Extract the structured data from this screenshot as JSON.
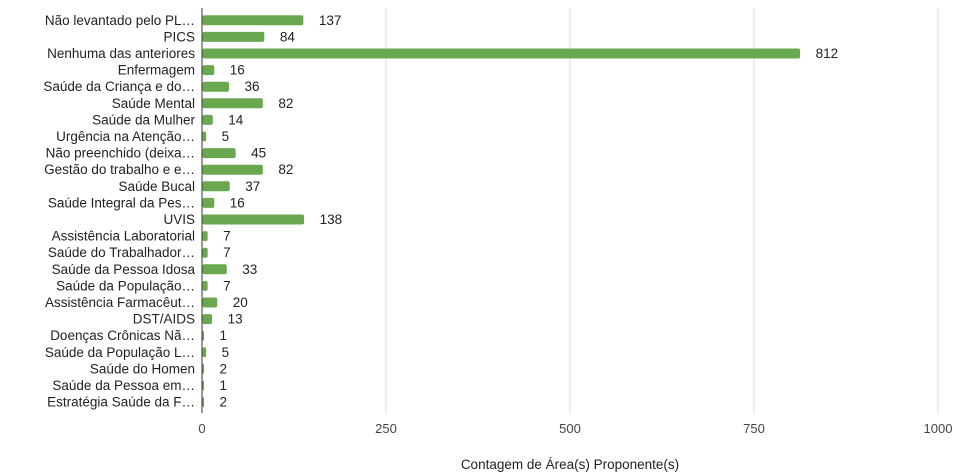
{
  "chart_data": {
    "type": "bar",
    "orientation": "horizontal",
    "categories": [
      "Não levantado pelo PL…",
      "PICS",
      "Nenhuma das anteriores",
      "Enfermagem",
      "Saúde da Criança e do…",
      "Saúde Mental",
      "Saúde da Mulher",
      "Urgência na Atenção…",
      "Não preenchido (deixa…",
      "Gestão do trabalho e e…",
      "Saúde Bucal",
      "Saúde Integral da Pes…",
      "UVIS",
      "Assistência Laboratorial",
      "Saúde do Trabalhador…",
      "Saúde da Pessoa Idosa",
      "Saúde da População…",
      "Assistência Farmacêut…",
      "DST/AIDS",
      "Doenças Crônicas Nã…",
      "Saúde da População L…",
      "Saúde do Homen",
      "Saúde da Pessoa em…",
      "Estratégia Saúde da F…"
    ],
    "values": [
      137,
      84,
      812,
      16,
      36,
      82,
      14,
      5,
      45,
      82,
      37,
      16,
      138,
      7,
      7,
      33,
      7,
      20,
      13,
      1,
      5,
      2,
      1,
      2
    ],
    "value_labels": [
      "137",
      "84",
      "812",
      "16",
      "36",
      "82",
      "14",
      "5",
      "45",
      "82",
      "37",
      "16",
      "138",
      "7",
      "7",
      "33",
      "7",
      "20",
      "13",
      "1",
      "5",
      "2",
      "1",
      "2"
    ],
    "xlabel": "Contagem de Área(s) Proponente(s)",
    "ylabel": "",
    "title": "",
    "xlim": [
      0,
      1000
    ],
    "x_ticks": [
      0,
      250,
      500,
      750,
      1000
    ],
    "x_tick_labels": [
      "0",
      "250",
      "500",
      "750",
      "1000"
    ],
    "grid": "vertical",
    "legend": "none",
    "colors": {
      "bar": "#6aa84f",
      "grid": "#dddddd",
      "axis": "#333333"
    }
  }
}
